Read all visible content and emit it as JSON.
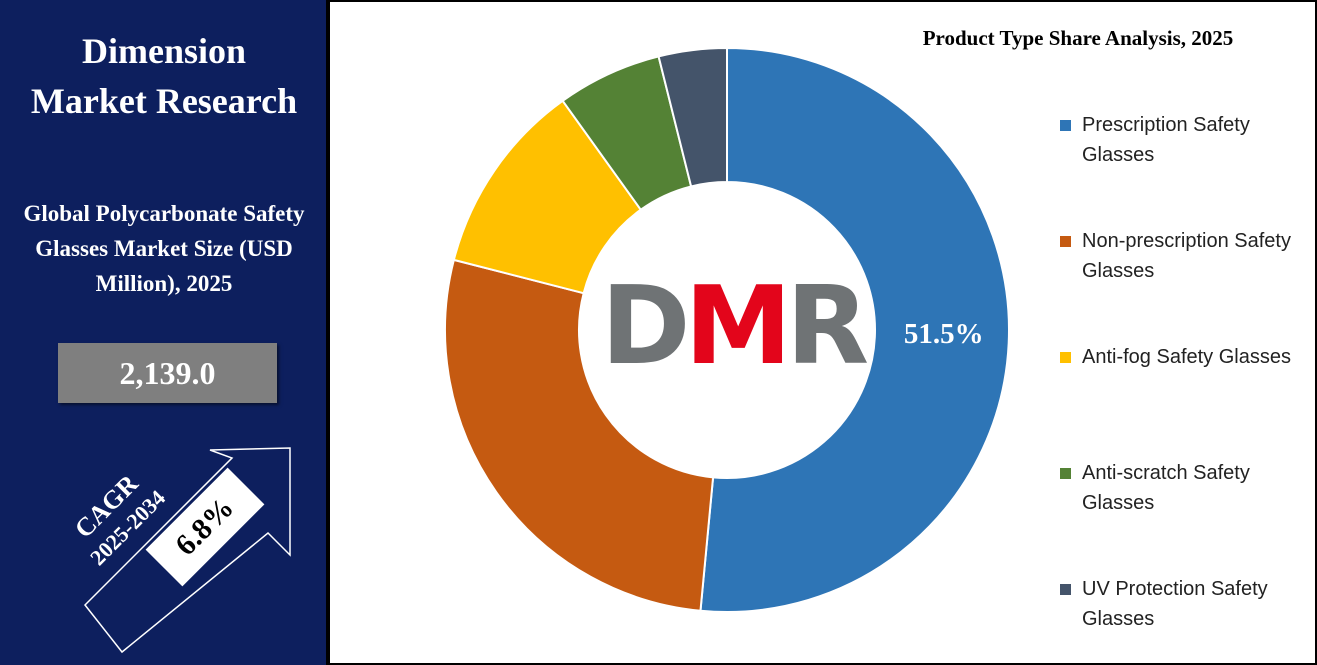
{
  "sidebar": {
    "brand": "Dimension Market Research",
    "subtitle": "Global Polycarbonate Safety Glasses Market Size (USD Million), 2025",
    "value": "2,139.0",
    "cagr_label": "CAGR",
    "cagr_period": "2025-2034",
    "cagr_value": "6.8%"
  },
  "logo": "DMR",
  "chart_data": {
    "type": "donut",
    "title": "Product Type Share Analysis, 2025",
    "categories": [
      "Prescription Safety Glasses",
      "Non-prescription Safety Glasses",
      "Anti-fog Safety Glasses",
      "Anti-scratch Safety Glasses",
      "UV Protection Safety Glasses"
    ],
    "values": [
      51.5,
      27.5,
      11.1,
      6.0,
      3.9
    ],
    "value_labels": [
      "51.5%",
      null,
      null,
      null,
      null
    ],
    "colors": [
      "#2e75b6",
      "#c55a11",
      "#ffc000",
      "#548235",
      "#44546a"
    ]
  }
}
